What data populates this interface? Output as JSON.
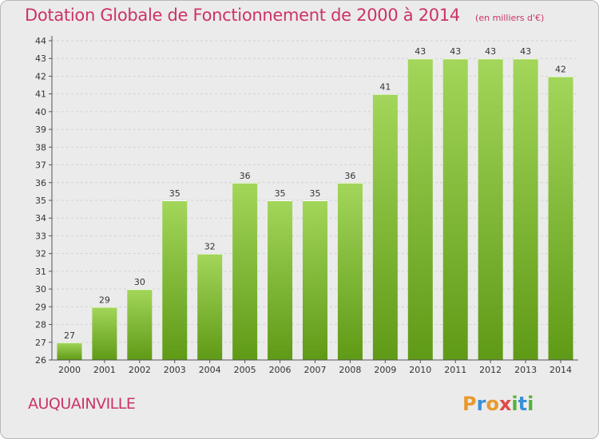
{
  "header": {
    "title": "Dotation Globale de Fonctionnement de 2000 à 2014",
    "subtitle": "(en milliers d'€)"
  },
  "commune": "AUQUAINVILLE",
  "logo": {
    "text": "Proxiti"
  },
  "colors": {
    "accent": "#cc3366",
    "bar_top": "#a3d65a",
    "bar_bottom": "#5f9a16",
    "background": "#ebebeb"
  },
  "chart_data": {
    "type": "bar",
    "title": "Dotation Globale de Fonctionnement de 2000 à 2014",
    "subtitle": "(en milliers d'€)",
    "xlabel": "",
    "ylabel": "",
    "categories": [
      "2000",
      "2001",
      "2002",
      "2003",
      "2004",
      "2005",
      "2006",
      "2007",
      "2008",
      "2009",
      "2010",
      "2011",
      "2012",
      "2013",
      "2014"
    ],
    "values": [
      27,
      29,
      30,
      35,
      32,
      36,
      35,
      35,
      36,
      41,
      43,
      43,
      43,
      43,
      42
    ],
    "ylim": [
      26,
      44
    ],
    "yticks": [
      26,
      27,
      28,
      29,
      30,
      31,
      32,
      33,
      34,
      35,
      36,
      37,
      38,
      39,
      40,
      41,
      42,
      43,
      44
    ],
    "grid": true,
    "legend": "none"
  }
}
